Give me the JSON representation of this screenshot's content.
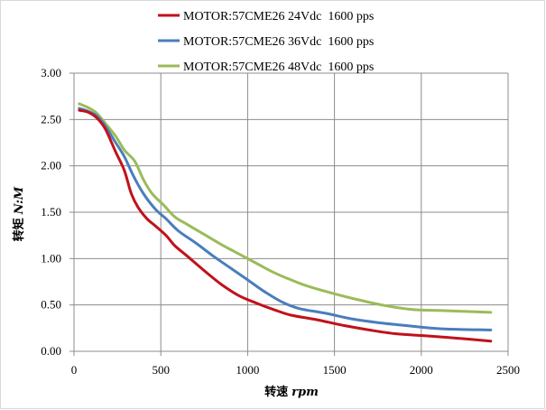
{
  "chart_data": {
    "type": "line",
    "title": "",
    "xlabel": "转速 rpm",
    "xlabel_main": "转速",
    "xlabel_unit": "rpm",
    "ylabel": "转矩 N:M",
    "ylabel_main": "转矩",
    "ylabel_unit": "N:M",
    "xlim": [
      0,
      2500
    ],
    "ylim": [
      0,
      3.0
    ],
    "x_ticks": [
      "0",
      "500",
      "1000",
      "1500",
      "2000",
      "2500"
    ],
    "x_tick_values": [
      0,
      500,
      1000,
      1500,
      2000,
      2500
    ],
    "y_ticks": [
      "0.00",
      "0.50",
      "1.00",
      "1.50",
      "2.00",
      "2.50",
      "3.00"
    ],
    "y_tick_values": [
      0,
      0.5,
      1.0,
      1.5,
      2.0,
      2.5,
      3.0
    ],
    "grid": true,
    "legend_position": "top-center",
    "series": [
      {
        "name": "MOTOR:57CME26 24Vdc  1600 pps",
        "color": "#c0121b",
        "x": [
          30,
          80,
          130,
          180,
          240,
          290,
          330,
          370,
          420,
          470,
          530,
          580,
          650,
          750,
          850,
          950,
          1050,
          1150,
          1250,
          1400,
          1550,
          1700,
          1850,
          2000,
          2150,
          2400
        ],
        "y": [
          2.6,
          2.58,
          2.52,
          2.4,
          2.15,
          1.95,
          1.7,
          1.55,
          1.43,
          1.35,
          1.25,
          1.14,
          1.03,
          0.87,
          0.72,
          0.6,
          0.52,
          0.45,
          0.39,
          0.34,
          0.28,
          0.23,
          0.19,
          0.17,
          0.15,
          0.11
        ]
      },
      {
        "name": "MOTOR:57CME26 36Vdc  1600 pps",
        "color": "#4a7ebb",
        "x": [
          30,
          80,
          130,
          180,
          240,
          290,
          340,
          400,
          470,
          530,
          600,
          700,
          800,
          900,
          1000,
          1100,
          1200,
          1300,
          1450,
          1600,
          1750,
          1900,
          2000,
          2150,
          2400
        ],
        "y": [
          2.62,
          2.59,
          2.54,
          2.43,
          2.25,
          2.1,
          1.9,
          1.7,
          1.53,
          1.43,
          1.3,
          1.17,
          1.03,
          0.9,
          0.77,
          0.64,
          0.53,
          0.46,
          0.41,
          0.35,
          0.31,
          0.28,
          0.26,
          0.24,
          0.23
        ]
      },
      {
        "name": "MOTOR:57CME26 48Vdc  1600 pps",
        "color": "#9bbb59",
        "x": [
          30,
          80,
          130,
          180,
          240,
          290,
          350,
          400,
          450,
          520,
          580,
          650,
          750,
          850,
          950,
          1050,
          1150,
          1250,
          1350,
          1500,
          1650,
          1800,
          1950,
          2100,
          2400
        ],
        "y": [
          2.67,
          2.63,
          2.57,
          2.46,
          2.32,
          2.17,
          2.05,
          1.85,
          1.7,
          1.57,
          1.45,
          1.37,
          1.26,
          1.15,
          1.05,
          0.95,
          0.85,
          0.77,
          0.7,
          0.62,
          0.55,
          0.49,
          0.45,
          0.44,
          0.42
        ]
      }
    ]
  }
}
